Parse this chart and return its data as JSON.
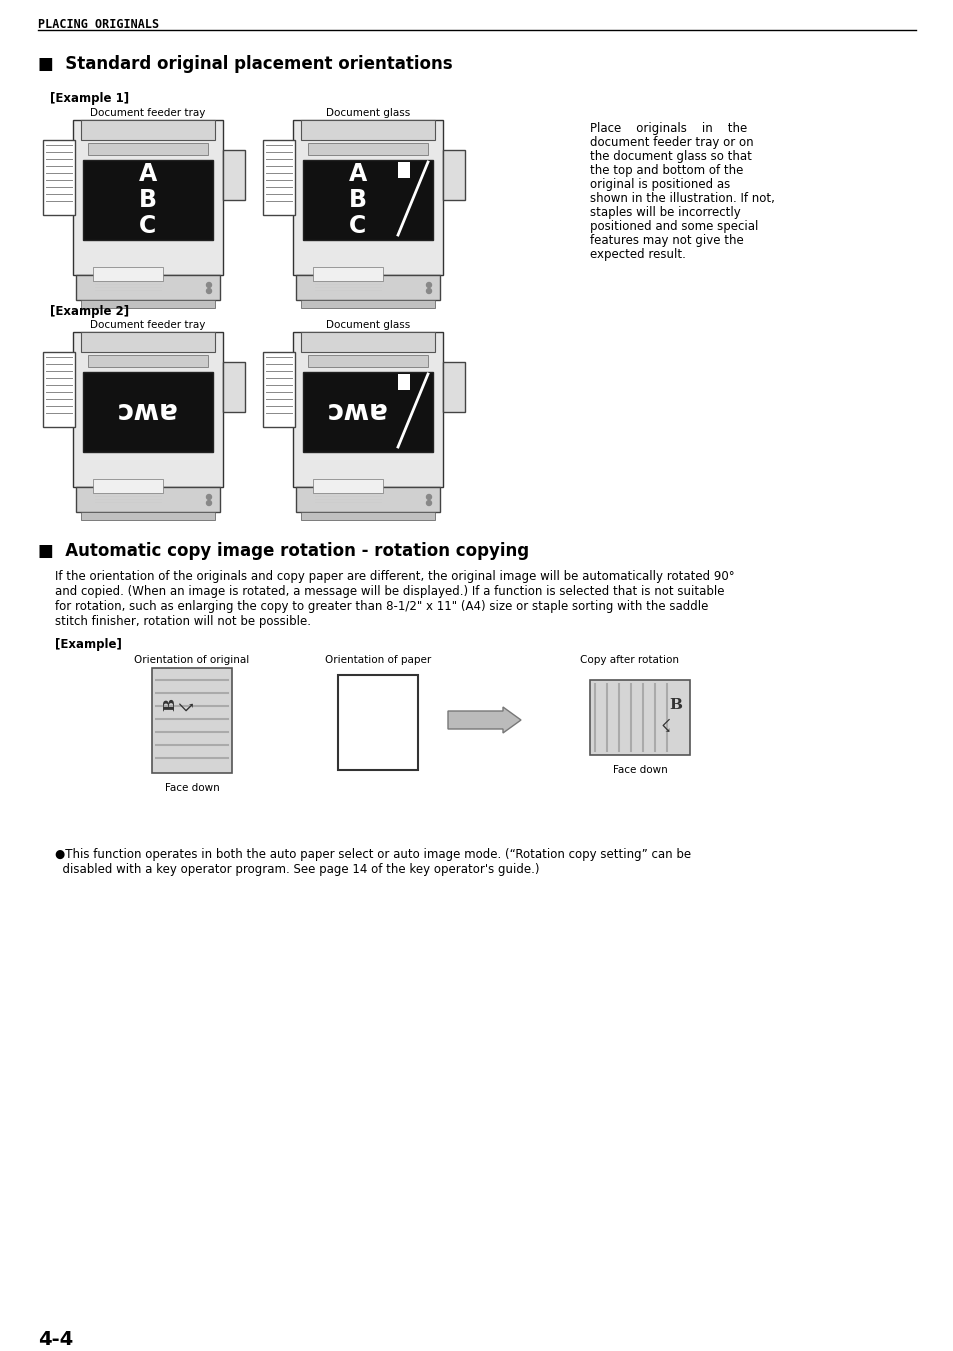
{
  "bg_color": "#ffffff",
  "page_number": "4-4",
  "header_text": "PLACING ORIGINALS",
  "section1_title": "■  Standard original placement orientations",
  "example1_label": "[Example 1]",
  "example2_label": "[Example 2]",
  "doc_feeder_label": "Document feeder tray",
  "doc_glass_label": "Document glass",
  "side_text_lines": [
    "Place    originals    in    the",
    "document feeder tray or on",
    "the document glass so that",
    "the top and bottom of the",
    "original is positioned as",
    "shown in the illustration. If not,",
    "staples will be incorrectly",
    "positioned and some special",
    "features may not give the",
    "expected result."
  ],
  "section2_title": "■  Automatic copy image rotation - rotation copying",
  "section2_body_lines": [
    "If the orientation of the originals and copy paper are different, the original image will be automatically rotated 90°",
    "and copied. (When an image is rotated, a message will be displayed.) If a function is selected that is not suitable",
    "for rotation, such as enlarging the copy to greater than 8-1/2\" x 11\" (A4) size or staple sorting with the saddle",
    "stitch finisher, rotation will not be possible."
  ],
  "example_label": "[Example]",
  "orient_orig_label": "Orientation of original",
  "orient_paper_label": "Orientation of paper",
  "copy_after_label": "Copy after rotation",
  "face_down_label1": "Face down",
  "face_down_label2": "Face down",
  "bullet_text_lines": [
    "●This function operates in both the auto paper select or auto image mode. (“Rotation copy setting” can be",
    "  disabled with a key operator program. See page 14 of the key operator's guide.)"
  ],
  "machine_body_color": "#e8e8e8",
  "machine_edge_color": "#333333",
  "machine_dark_area_color": "#111111",
  "machine_roller_color": "#ffffff",
  "machine_bottom_color": "#d0d0d0"
}
